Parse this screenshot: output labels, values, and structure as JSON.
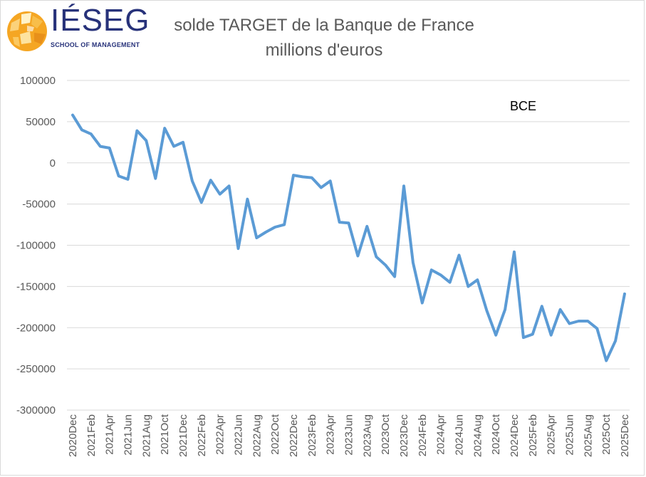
{
  "logo": {
    "wordmark": "IÉSEG",
    "subtitle": "SCHOOL OF MANAGEMENT",
    "colors": {
      "sun": "#f5a623",
      "text": "#27327a"
    }
  },
  "chart_data": {
    "type": "line",
    "title": "solde TARGET de la Banque de France",
    "subtitle": "millions d'euros",
    "annotation": "BCE",
    "xlabel": "",
    "ylabel": "",
    "ylim": [
      -300000,
      100000
    ],
    "yticks": [
      100000,
      50000,
      0,
      -50000,
      -100000,
      -150000,
      -200000,
      -250000,
      -300000
    ],
    "ytick_labels": [
      "100000",
      "50000",
      "0",
      "-50000",
      "-100000",
      "-150000",
      "-200000",
      "-250000",
      "-300000"
    ],
    "grid": true,
    "line_color": "#5b9bd5",
    "xtick_labels": [
      "2020Dec",
      "2021Feb",
      "2021Apr",
      "2021Jun",
      "2021Aug",
      "2021Oct",
      "2021Dec",
      "2022Feb",
      "2022Apr",
      "2022Jun",
      "2022Aug",
      "2022Oct",
      "2022Dec",
      "2023Feb",
      "2023Apr",
      "2023Jun",
      "2023Aug",
      "2023Oct",
      "2023Dec",
      "2024Feb",
      "2024Apr",
      "2024Jun",
      "2024Aug",
      "2024Oct",
      "2024Dec",
      "2025Feb",
      "2025Apr",
      "2025Jun",
      "2025Aug",
      "2025Oct",
      "2025Dec"
    ],
    "values": [
      58000,
      40000,
      35000,
      20000,
      18000,
      -16000,
      -20000,
      39000,
      27000,
      -19000,
      42000,
      20000,
      25000,
      -22000,
      -48000,
      -21000,
      -38000,
      -28000,
      -104000,
      -44000,
      -91000,
      -84000,
      -78000,
      -75000,
      -15000,
      -17000,
      -18000,
      -30000,
      -22000,
      -72000,
      -73000,
      -113000,
      -77000,
      -114000,
      -124000,
      -138000,
      -28000,
      -121000,
      -170000,
      -130000,
      -136000,
      -145000,
      -112000,
      -150000,
      -142000,
      -179000,
      -209000,
      -178000,
      -108000,
      -212000,
      -208000,
      -174000,
      -209000,
      -178000,
      -195000,
      -192000,
      -192000,
      -201000,
      -240000,
      -216000,
      -159000
    ]
  }
}
